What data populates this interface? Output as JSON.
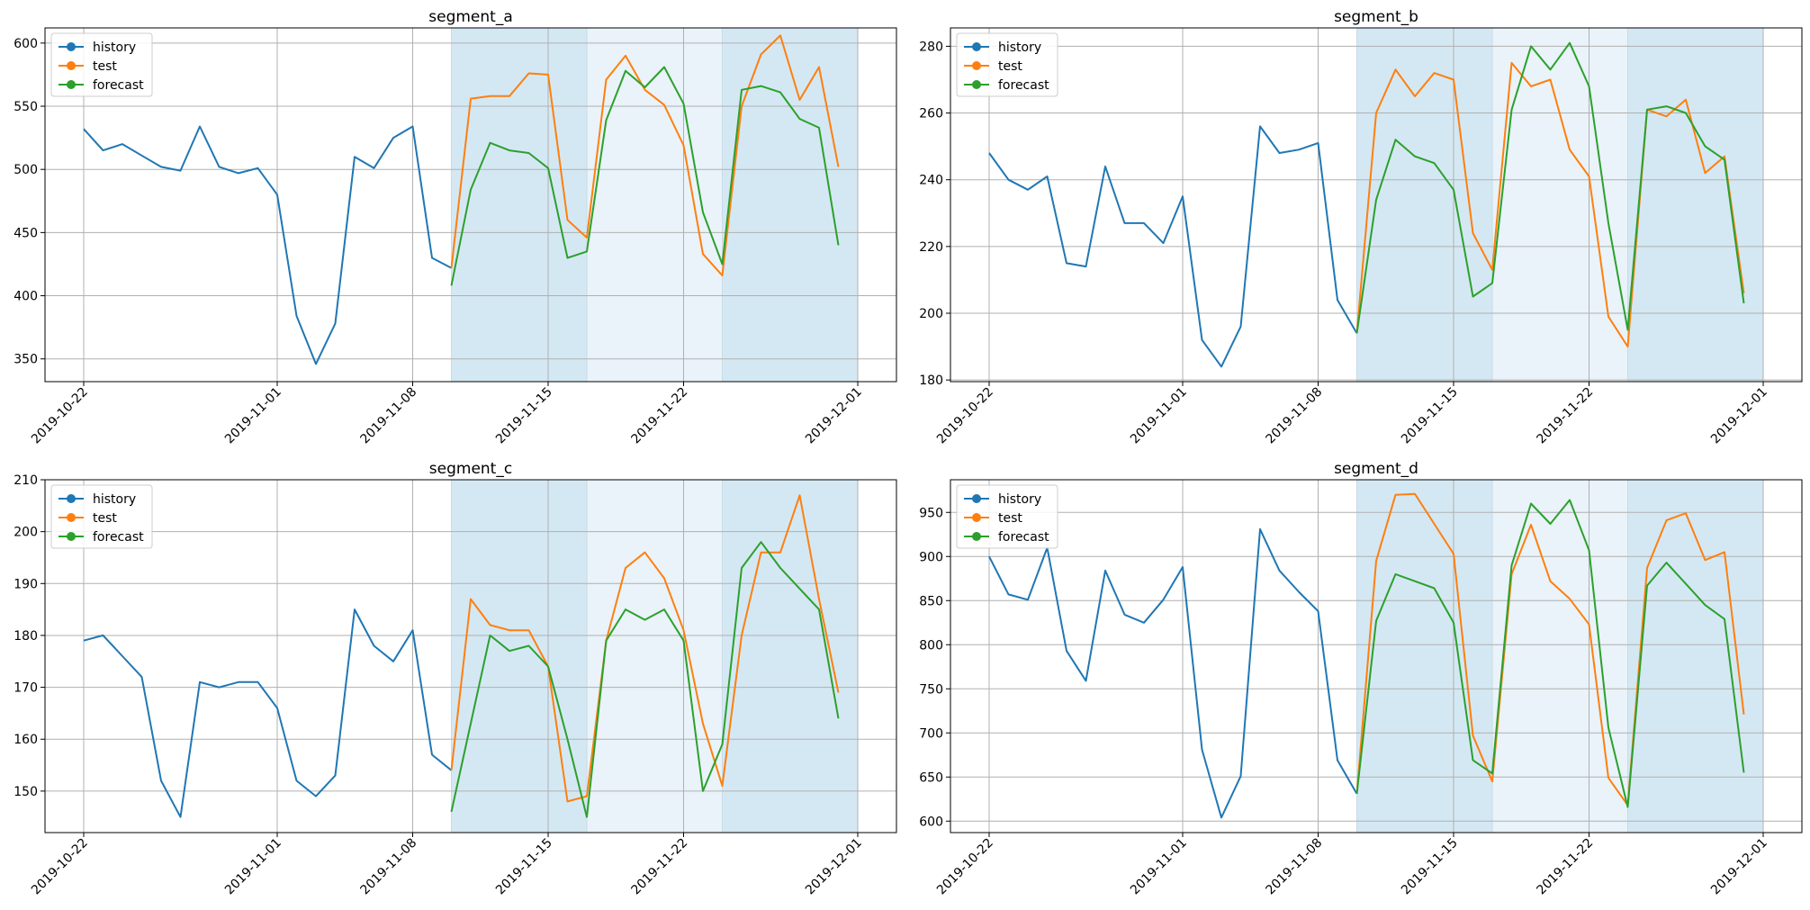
{
  "figure": {
    "background": "#ffffff"
  },
  "chart_data": [
    {
      "type": "line",
      "title": "segment_a",
      "legend": {
        "placement": "top-left",
        "entries": [
          "history",
          "test",
          "forecast"
        ]
      },
      "grid": true,
      "ylim": [
        332,
        612
      ],
      "yticks": [
        350,
        400,
        450,
        500,
        550,
        600
      ],
      "xlim": [
        "2019-10-20",
        "2019-12-03"
      ],
      "xticks": [
        "2019-10-22",
        "2019-11-01",
        "2019-11-08",
        "2019-11-15",
        "2019-11-22",
        "2019-12-01"
      ],
      "bands": [
        [
          "2019-11-10",
          "2019-11-17",
          "#d4e8f3"
        ],
        [
          "2019-11-17",
          "2019-11-24",
          "#e9f3f9"
        ],
        [
          "2019-11-24",
          "2019-12-01",
          "#d4e8f3"
        ]
      ],
      "series": [
        {
          "name": "history",
          "color": "#1f77b4",
          "x_start": "2019-10-22",
          "values": [
            532,
            515,
            520,
            511,
            502,
            499,
            534,
            502,
            497,
            501,
            480,
            384,
            346,
            378,
            510,
            501,
            525,
            534,
            430,
            422
          ]
        },
        {
          "name": "test",
          "color": "#ff7f0e",
          "x_start": "2019-11-10",
          "values": [
            422,
            556,
            558,
            558,
            576,
            575,
            460,
            446,
            571,
            590,
            563,
            551,
            519,
            433,
            416,
            550,
            591,
            606,
            555,
            581,
            502
          ]
        },
        {
          "name": "forecast",
          "color": "#2ca02c",
          "x_start": "2019-11-10",
          "values": [
            408,
            484,
            521,
            515,
            513,
            501,
            430,
            435,
            539,
            578,
            565,
            581,
            552,
            466,
            425,
            563,
            566,
            561,
            540,
            533,
            440
          ]
        }
      ]
    },
    {
      "type": "line",
      "title": "segment_b",
      "legend": {
        "placement": "top-left",
        "entries": [
          "history",
          "test",
          "forecast"
        ]
      },
      "grid": true,
      "ylim": [
        179.5,
        285.5
      ],
      "yticks": [
        180,
        200,
        220,
        240,
        260,
        280
      ],
      "xlim": [
        "2019-10-20",
        "2019-12-03"
      ],
      "xticks": [
        "2019-10-22",
        "2019-11-01",
        "2019-11-08",
        "2019-11-15",
        "2019-11-22",
        "2019-12-01"
      ],
      "bands": [
        [
          "2019-11-10",
          "2019-11-17",
          "#d4e8f3"
        ],
        [
          "2019-11-17",
          "2019-11-24",
          "#e9f3f9"
        ],
        [
          "2019-11-24",
          "2019-12-01",
          "#d4e8f3"
        ]
      ],
      "series": [
        {
          "name": "history",
          "color": "#1f77b4",
          "x_start": "2019-10-22",
          "values": [
            248,
            240,
            237,
            241,
            215,
            214,
            244,
            227,
            227,
            221,
            235,
            192,
            184,
            196,
            256,
            248,
            249,
            251,
            204,
            194
          ]
        },
        {
          "name": "test",
          "color": "#ff7f0e",
          "x_start": "2019-11-10",
          "values": [
            194,
            260,
            273,
            265,
            272,
            270,
            224,
            213,
            275,
            268,
            270,
            249,
            241,
            199,
            190,
            261,
            259,
            264,
            242,
            247,
            206
          ]
        },
        {
          "name": "forecast",
          "color": "#2ca02c",
          "x_start": "2019-11-10",
          "values": [
            194,
            234,
            252,
            247,
            245,
            237,
            205,
            209,
            261,
            280,
            273,
            281,
            268,
            227,
            195,
            261,
            262,
            260,
            250,
            246,
            203
          ]
        }
      ]
    },
    {
      "type": "line",
      "title": "segment_c",
      "legend": {
        "placement": "top-left",
        "entries": [
          "history",
          "test",
          "forecast"
        ]
      },
      "grid": true,
      "ylim": [
        142,
        210
      ],
      "yticks": [
        150,
        160,
        170,
        180,
        190,
        200,
        210
      ],
      "xlim": [
        "2019-10-20",
        "2019-12-03"
      ],
      "xticks": [
        "2019-10-22",
        "2019-11-01",
        "2019-11-08",
        "2019-11-15",
        "2019-11-22",
        "2019-12-01"
      ],
      "bands": [
        [
          "2019-11-10",
          "2019-11-17",
          "#d4e8f3"
        ],
        [
          "2019-11-17",
          "2019-11-24",
          "#e9f3f9"
        ],
        [
          "2019-11-24",
          "2019-12-01",
          "#d4e8f3"
        ]
      ],
      "series": [
        {
          "name": "history",
          "color": "#1f77b4",
          "x_start": "2019-10-22",
          "values": [
            179,
            180,
            176,
            172,
            152,
            145,
            171,
            170,
            171,
            171,
            166,
            152,
            149,
            153,
            185,
            178,
            175,
            181,
            157,
            154
          ]
        },
        {
          "name": "test",
          "color": "#ff7f0e",
          "x_start": "2019-11-10",
          "values": [
            154,
            187,
            182,
            181,
            181,
            174,
            148,
            149,
            179,
            193,
            196,
            191,
            181,
            163,
            151,
            180,
            196,
            196,
            207,
            187,
            169
          ]
        },
        {
          "name": "forecast",
          "color": "#2ca02c",
          "x_start": "2019-11-10",
          "values": [
            146,
            163,
            180,
            177,
            178,
            174,
            160,
            145,
            179,
            185,
            183,
            185,
            179,
            150,
            159,
            193,
            198,
            193,
            189,
            185,
            164
          ]
        }
      ]
    },
    {
      "type": "line",
      "title": "segment_d",
      "legend": {
        "placement": "top-left",
        "entries": [
          "history",
          "test",
          "forecast"
        ]
      },
      "grid": true,
      "ylim": [
        587,
        987
      ],
      "yticks": [
        600,
        650,
        700,
        750,
        800,
        850,
        900,
        950
      ],
      "xlim": [
        "2019-10-20",
        "2019-12-03"
      ],
      "xticks": [
        "2019-10-22",
        "2019-11-01",
        "2019-11-08",
        "2019-11-15",
        "2019-11-22",
        "2019-12-01"
      ],
      "bands": [
        [
          "2019-11-10",
          "2019-11-17",
          "#d4e8f3"
        ],
        [
          "2019-11-17",
          "2019-11-24",
          "#e9f3f9"
        ],
        [
          "2019-11-24",
          "2019-12-01",
          "#d4e8f3"
        ]
      ],
      "series": [
        {
          "name": "history",
          "color": "#1f77b4",
          "x_start": "2019-10-22",
          "values": [
            900,
            857,
            851,
            910,
            793,
            759,
            884,
            834,
            825,
            851,
            888,
            681,
            604,
            651,
            931,
            884,
            860,
            838,
            669,
            631
          ]
        },
        {
          "name": "test",
          "color": "#ff7f0e",
          "x_start": "2019-11-10",
          "values": [
            631,
            895,
            970,
            971,
            937,
            903,
            697,
            645,
            880,
            936,
            872,
            852,
            823,
            649,
            618,
            887,
            941,
            949,
            896,
            905,
            721
          ]
        },
        {
          "name": "forecast",
          "color": "#2ca02c",
          "x_start": "2019-11-10",
          "values": [
            631,
            827,
            880,
            872,
            864,
            825,
            669,
            654,
            890,
            960,
            937,
            964,
            907,
            706,
            616,
            867,
            893,
            869,
            845,
            829,
            655
          ]
        }
      ]
    }
  ]
}
